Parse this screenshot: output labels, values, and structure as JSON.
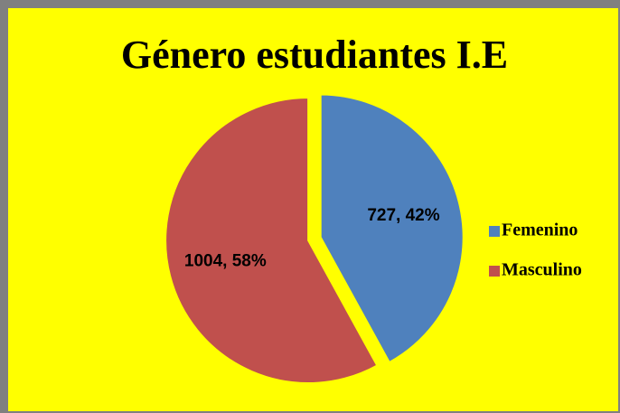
{
  "chart_data": {
    "type": "pie",
    "title": "Género estudiantes I.E",
    "categories": [
      "Femenino",
      "Masculino"
    ],
    "values": [
      727,
      1004
    ],
    "value_labels": [
      "727, 42%",
      "1004, 58%"
    ],
    "colors": [
      "#4f81bd",
      "#c0504d"
    ],
    "legend": "right"
  }
}
